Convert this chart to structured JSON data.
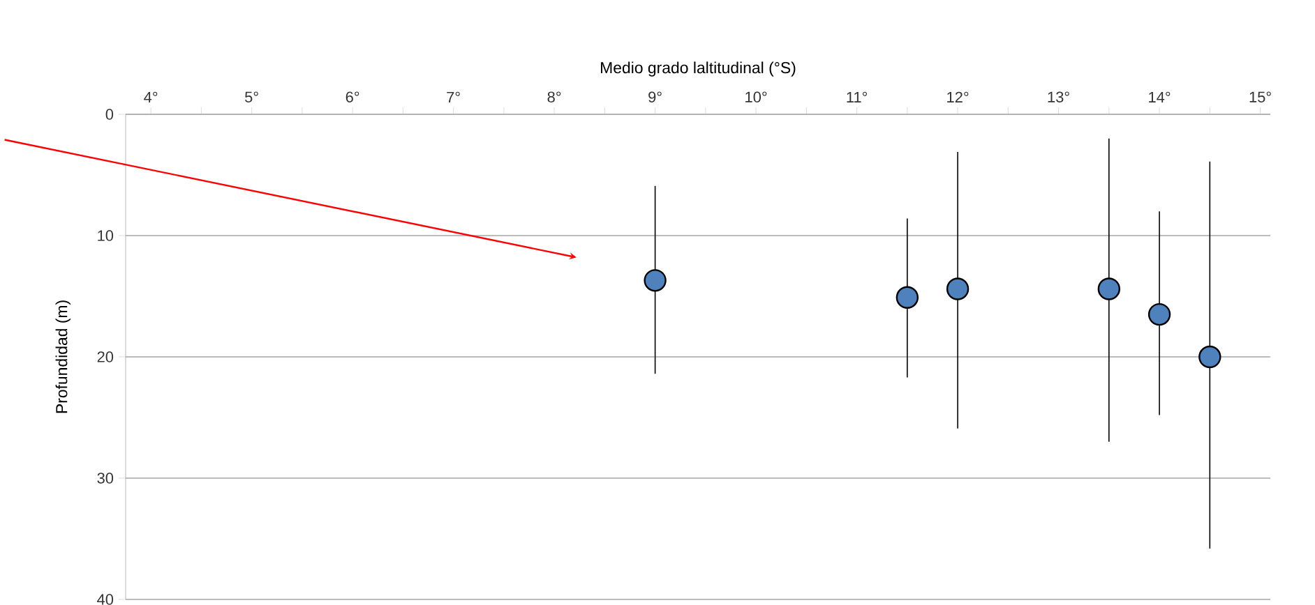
{
  "chart_data": {
    "type": "scatter",
    "xlabel": "Medio grado laltitudinal (°S)",
    "ylabel": "Profundidad (m)",
    "x": [
      9,
      11.5,
      12,
      13.5,
      14,
      14.5
    ],
    "series": [
      {
        "color": "#4f81bd",
        "values": [
          13.7,
          15.1,
          14.4,
          14.4,
          16.5,
          20.0
        ],
        "errors": [
          [
            5.9,
            21.4
          ],
          [
            8.6,
            21.7
          ],
          [
            3.1,
            25.9
          ],
          [
            2.0,
            27.0
          ],
          [
            8.0,
            24.8
          ],
          [
            3.9,
            35.8
          ]
        ]
      }
    ],
    "xlim": [
      3.75,
      15.1
    ],
    "ylim": [
      40,
      0
    ],
    "xticks": [
      {
        "value": 4,
        "label": "4°"
      },
      {
        "value": 5,
        "label": "5°"
      },
      {
        "value": 6,
        "label": "6°"
      },
      {
        "value": 7,
        "label": "7°"
      },
      {
        "value": 8,
        "label": "8°"
      },
      {
        "value": 9,
        "label": "9°"
      },
      {
        "value": 10,
        "label": "10°"
      },
      {
        "value": 11,
        "label": "11°"
      },
      {
        "value": 12,
        "label": "12°"
      },
      {
        "value": 13,
        "label": "13°"
      },
      {
        "value": 14,
        "label": "14°"
      },
      {
        "value": 15,
        "label": "15°"
      }
    ],
    "yticks": [
      0,
      10,
      20,
      30,
      40
    ],
    "grid": "y",
    "marker": "circle"
  }
}
